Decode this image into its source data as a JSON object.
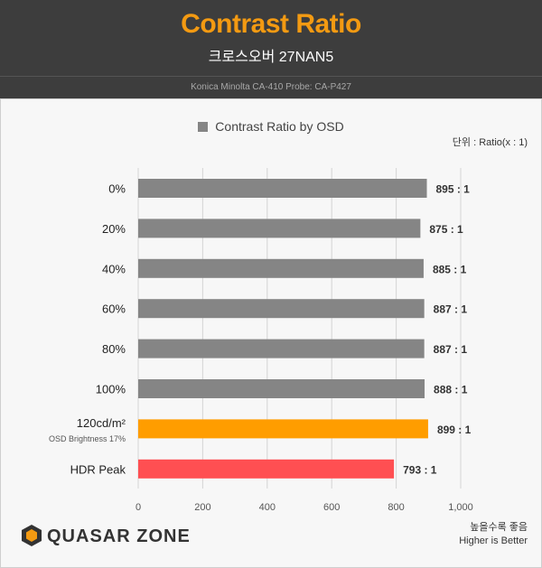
{
  "header": {
    "title": "Contrast Ratio",
    "subtitle": "크로스오버 27NAN5",
    "probe": "Konica Minolta CA-410 Probe: CA-P427"
  },
  "legend": {
    "label": "Contrast Ratio by OSD"
  },
  "unit_note": "단위 : Ratio(x : 1)",
  "footer": {
    "line1": "높을수록 좋음",
    "line2": "Higher is Better"
  },
  "logo": {
    "text": "QUASAR ZONE"
  },
  "colors": {
    "gray": "#858585",
    "orange": "#ff9d00",
    "red": "#ff4f52"
  },
  "chart_data": {
    "type": "bar",
    "orientation": "horizontal",
    "xlim": [
      0,
      1000
    ],
    "xticks": [
      "0",
      "200",
      "400",
      "600",
      "800",
      "1,000"
    ],
    "grid": true,
    "categories": [
      "0%",
      "20%",
      "40%",
      "60%",
      "80%",
      "100%",
      "120cd/m²",
      "HDR Peak"
    ],
    "category_notes": [
      "",
      "",
      "",
      "",
      "",
      "",
      "OSD Brightness 17%",
      ""
    ],
    "values": [
      895,
      875,
      885,
      887,
      887,
      888,
      899,
      793
    ],
    "value_labels": [
      "895 : 1",
      "875 : 1",
      "885 : 1",
      "887 : 1",
      "887 : 1",
      "888 : 1",
      "899 : 1",
      "793 : 1"
    ],
    "bar_colors": [
      "gray",
      "gray",
      "gray",
      "gray",
      "gray",
      "gray",
      "orange",
      "red"
    ]
  }
}
